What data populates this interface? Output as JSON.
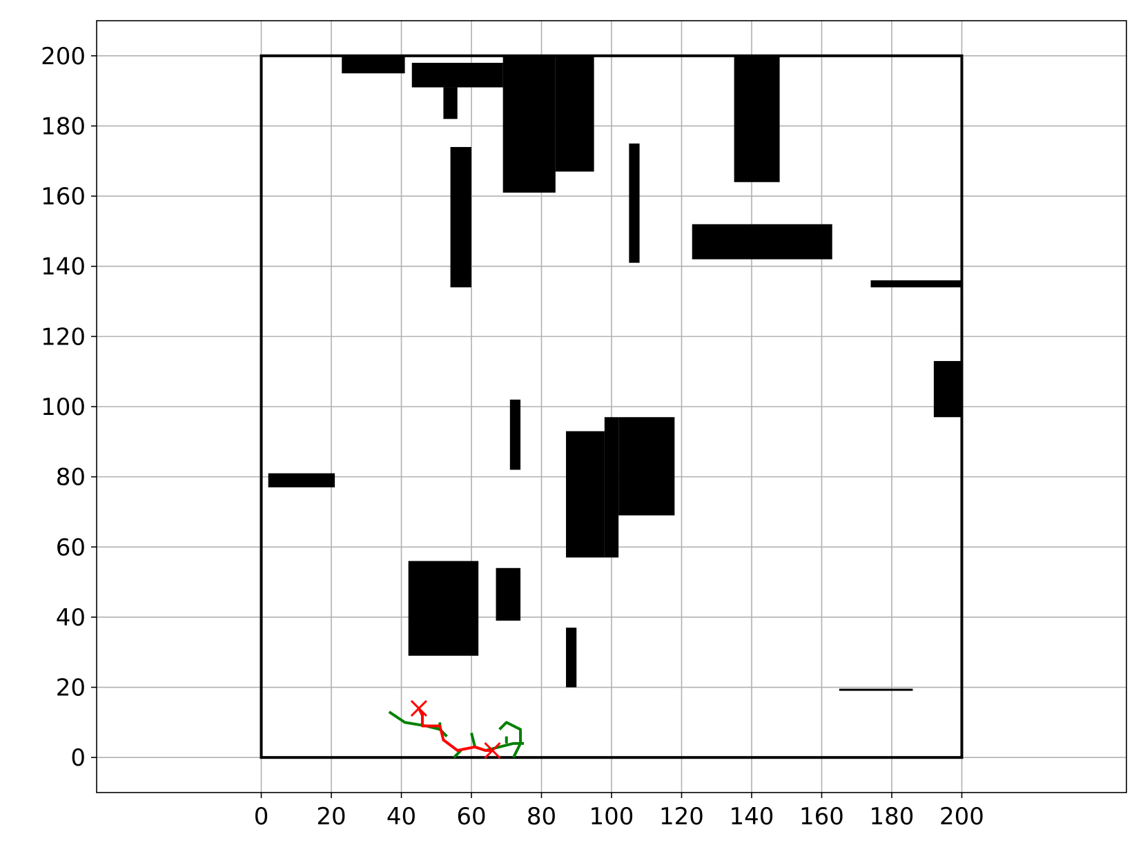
{
  "chart_data": {
    "type": "line",
    "title": "",
    "xlabel": "",
    "ylabel": "",
    "xlim": [
      -47,
      247
    ],
    "ylim": [
      -10,
      210
    ],
    "grid": true,
    "x_ticks": [
      0,
      20,
      40,
      60,
      80,
      100,
      120,
      140,
      160,
      180,
      200
    ],
    "y_ticks": [
      0,
      20,
      40,
      60,
      80,
      100,
      120,
      140,
      160,
      180,
      200
    ],
    "boundary": {
      "x": [
        0,
        200
      ],
      "y": [
        0,
        200
      ]
    },
    "obstacles": [
      {
        "x0": 23,
        "x1": 41,
        "y0": 195,
        "y1": 200
      },
      {
        "x0": 43,
        "x1": 69,
        "y0": 191,
        "y1": 198
      },
      {
        "x0": 52,
        "x1": 56,
        "y0": 182,
        "y1": 191
      },
      {
        "x0": 69,
        "x1": 84,
        "y0": 161,
        "y1": 200
      },
      {
        "x0": 84,
        "x1": 95,
        "y0": 167,
        "y1": 200
      },
      {
        "x0": 54,
        "x1": 60,
        "y0": 134,
        "y1": 174
      },
      {
        "x0": 105,
        "x1": 108,
        "y0": 141,
        "y1": 175
      },
      {
        "x0": 135,
        "x1": 148,
        "y0": 164,
        "y1": 200
      },
      {
        "x0": 123,
        "x1": 163,
        "y0": 142,
        "y1": 152
      },
      {
        "x0": 174,
        "x1": 200,
        "y0": 134,
        "y1": 136
      },
      {
        "x0": 192,
        "x1": 200,
        "y0": 97,
        "y1": 113
      },
      {
        "x0": 71,
        "x1": 74,
        "y0": 82,
        "y1": 102
      },
      {
        "x0": 87,
        "x1": 98,
        "y0": 57,
        "y1": 93
      },
      {
        "x0": 98,
        "x1": 102,
        "y0": 57,
        "y1": 97
      },
      {
        "x0": 102,
        "x1": 118,
        "y0": 69,
        "y1": 97
      },
      {
        "x0": 2,
        "x1": 21,
        "y0": 77,
        "y1": 81
      },
      {
        "x0": 42,
        "x1": 62,
        "y0": 29,
        "y1": 56
      },
      {
        "x0": 67,
        "x1": 74,
        "y0": 39,
        "y1": 54
      },
      {
        "x0": 87,
        "x1": 90,
        "y0": 20,
        "y1": 37
      },
      {
        "x0": 165,
        "x1": 186,
        "y0": 19,
        "y1": 19.6
      }
    ],
    "series": [
      {
        "color": "#008000",
        "segments": [
          {
            "x": [
              36.5,
              41,
              47,
              51,
              53
            ],
            "y": [
              13,
              10,
              9,
              8,
              6
            ]
          },
          {
            "x": [
              60,
              61,
              64,
              68,
              72,
              75
            ],
            "y": [
              7,
              3,
              2,
              3,
              4,
              4
            ]
          },
          {
            "x": [
              68,
              70,
              74,
              74,
              72
            ],
            "y": [
              8,
              10,
              8,
              4,
              0
            ]
          },
          {
            "x": [
              55,
              57
            ],
            "y": [
              0,
              2
            ]
          },
          {
            "x": [
              70,
              70
            ],
            "y": [
              4,
              6
            ]
          },
          {
            "x": [
              46,
              46
            ],
            "y": [
              11,
              13
            ]
          },
          {
            "x": [
              51,
              51
            ],
            "y": [
              10,
              8
            ]
          }
        ]
      },
      {
        "color": "#ff0000",
        "segments": [
          {
            "x": [
              45,
              46,
              46,
              51,
              52,
              56,
              61,
              64,
              66
            ],
            "y": [
              14,
              12,
              9,
              9,
              5,
              2,
              3,
              2,
              2
            ]
          }
        ]
      }
    ],
    "markers": [
      {
        "x": 45,
        "y": 14,
        "shape": "x",
        "color": "#ff0000"
      },
      {
        "x": 66,
        "y": 2,
        "shape": "x",
        "color": "#ff0000"
      }
    ]
  }
}
